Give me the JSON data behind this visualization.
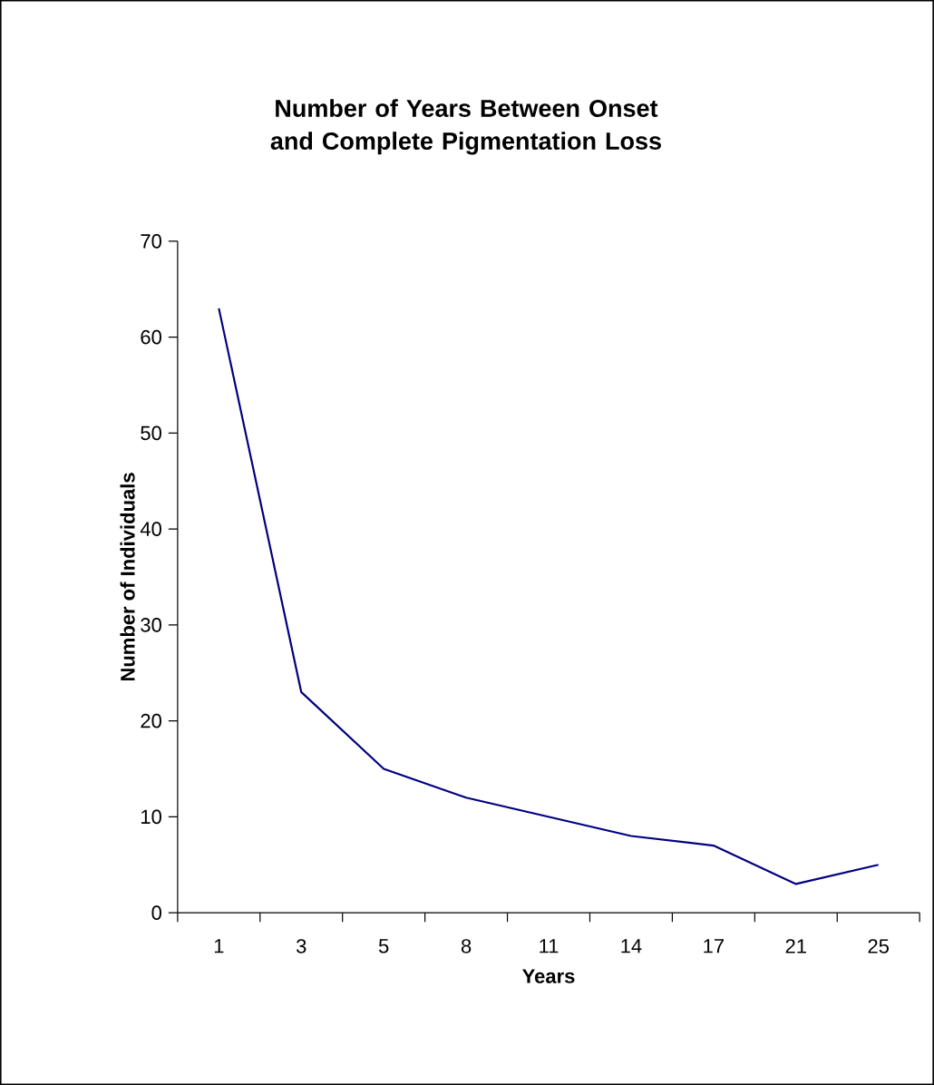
{
  "chart_data": {
    "type": "line",
    "title": "Number of Years Between Onset and Complete Pigmentation Loss",
    "xlabel": "Years",
    "ylabel": "Number of Individuals",
    "categories": [
      "1",
      "3",
      "5",
      "8",
      "11",
      "14",
      "17",
      "21",
      "25"
    ],
    "series": [
      {
        "color": "#000080",
        "values": [
          63,
          23,
          15,
          12,
          10,
          8,
          7,
          3,
          5
        ]
      }
    ],
    "ylim": [
      0,
      70
    ],
    "yticks": [
      0,
      10,
      20,
      30,
      40,
      50,
      60,
      70
    ]
  }
}
